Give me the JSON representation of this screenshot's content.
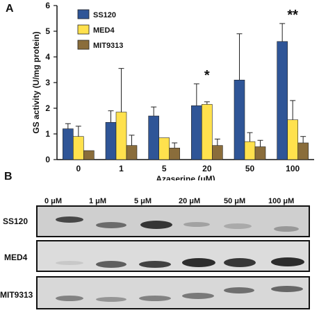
{
  "panel_a_letter": "A",
  "panel_b_letter": "B",
  "chart_data": {
    "type": "bar",
    "categories": [
      "0",
      "1",
      "5",
      "20",
      "50",
      "100"
    ],
    "xlabel": "Azaserine (μM)",
    "ylabel": "GS activity (U/mg protein)",
    "ylim": [
      0,
      6
    ],
    "yticks": [
      0,
      1,
      2,
      3,
      4,
      5,
      6
    ],
    "legend_position": "top-left",
    "series": [
      {
        "name": "SS120",
        "color": "#2f5597",
        "values": [
          1.2,
          1.45,
          1.7,
          2.1,
          3.1,
          4.6
        ],
        "errors": [
          0.2,
          0.45,
          0.35,
          0.85,
          1.8,
          0.7
        ]
      },
      {
        "name": "MED4",
        "color": "#ffe14d",
        "values": [
          0.9,
          1.85,
          0.85,
          2.15,
          0.7,
          1.55
        ],
        "errors": [
          0.4,
          1.7,
          0.0,
          0.1,
          0.35,
          0.75
        ]
      },
      {
        "name": "MIT9313",
        "color": "#8a6d3b",
        "values": [
          0.35,
          0.55,
          0.45,
          0.55,
          0.5,
          0.65
        ],
        "errors": [
          0.0,
          0.4,
          0.2,
          0.25,
          0.25,
          0.25
        ]
      }
    ],
    "annotations": [
      {
        "category": "20",
        "text": "*"
      },
      {
        "category": "100",
        "text": "**"
      }
    ]
  },
  "blot": {
    "concentrations": [
      "0 μM",
      "1 μM",
      "5 μM",
      "20 μM",
      "50 μM",
      "100 μM"
    ],
    "rows": [
      {
        "label": "SS120"
      },
      {
        "label": "MED4"
      },
      {
        "label": "MIT9313"
      }
    ]
  }
}
